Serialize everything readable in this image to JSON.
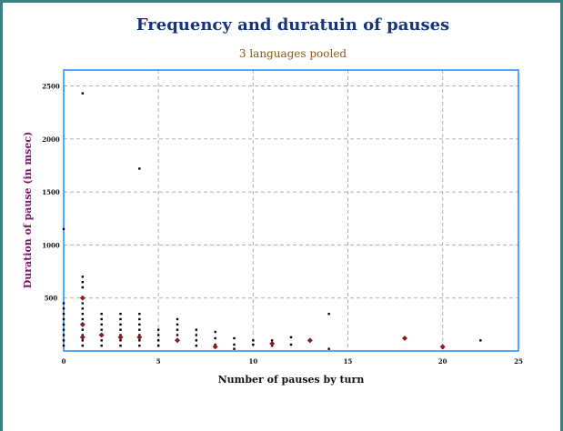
{
  "chart_data": {
    "type": "scatter",
    "title": "Frequency and duratuin of pauses",
    "subtitle": "3 languages pooled",
    "xlabel": "Number of pauses by turn",
    "ylabel": "Duration of pause (in msec)",
    "x_ticks": [
      "0",
      "5",
      "10",
      "15",
      "20",
      "25"
    ],
    "y_ticks": [
      "500",
      "1000",
      "1500",
      "2000",
      "2500"
    ],
    "xlim": [
      0,
      24
    ],
    "ylim": [
      0,
      2650
    ],
    "grid": true,
    "colors": {
      "frame": "#1e8cff",
      "grid": "#b0b0b0",
      "points": "#000000",
      "means": "#8b1a1a",
      "border": "#3f7f7f"
    },
    "series": [
      {
        "points": [
          [
            0,
            1150
          ],
          [
            0,
            450
          ],
          [
            0,
            400
          ],
          [
            0,
            350
          ],
          [
            0,
            300
          ],
          [
            0,
            250
          ],
          [
            0,
            200
          ],
          [
            0,
            150
          ],
          [
            0,
            100
          ],
          [
            0,
            50
          ],
          [
            1,
            2430
          ],
          [
            1,
            700
          ],
          [
            1,
            650
          ],
          [
            1,
            600
          ],
          [
            1,
            500
          ],
          [
            1,
            450
          ],
          [
            1,
            400
          ],
          [
            1,
            350
          ],
          [
            1,
            300
          ],
          [
            1,
            250
          ],
          [
            1,
            200
          ],
          [
            1,
            150
          ],
          [
            1,
            100
          ],
          [
            1,
            50
          ],
          [
            2,
            350
          ],
          [
            2,
            300
          ],
          [
            2,
            250
          ],
          [
            2,
            200
          ],
          [
            2,
            150
          ],
          [
            2,
            100
          ],
          [
            2,
            50
          ],
          [
            3,
            350
          ],
          [
            3,
            300
          ],
          [
            3,
            250
          ],
          [
            3,
            200
          ],
          [
            3,
            150
          ],
          [
            3,
            100
          ],
          [
            3,
            50
          ],
          [
            4,
            1720
          ],
          [
            4,
            350
          ],
          [
            4,
            300
          ],
          [
            4,
            250
          ],
          [
            4,
            200
          ],
          [
            4,
            150
          ],
          [
            4,
            100
          ],
          [
            4,
            50
          ],
          [
            5,
            200
          ],
          [
            5,
            150
          ],
          [
            5,
            100
          ],
          [
            5,
            50
          ],
          [
            6,
            300
          ],
          [
            6,
            250
          ],
          [
            6,
            200
          ],
          [
            6,
            150
          ],
          [
            6,
            100
          ],
          [
            7,
            200
          ],
          [
            7,
            150
          ],
          [
            7,
            100
          ],
          [
            7,
            50
          ],
          [
            8,
            180
          ],
          [
            8,
            120
          ],
          [
            8,
            60
          ],
          [
            9,
            120
          ],
          [
            9,
            60
          ],
          [
            9,
            20
          ],
          [
            10,
            100
          ],
          [
            10,
            60
          ],
          [
            11,
            100
          ],
          [
            11,
            50
          ],
          [
            12,
            130
          ],
          [
            12,
            60
          ],
          [
            13,
            100
          ],
          [
            14,
            350
          ],
          [
            14,
            20
          ],
          [
            20,
            30
          ],
          [
            22,
            100
          ]
        ]
      },
      {
        "points": [
          [
            1,
            500
          ],
          [
            1,
            250
          ],
          [
            1,
            130
          ],
          [
            2,
            150
          ],
          [
            3,
            130
          ],
          [
            4,
            130
          ],
          [
            6,
            100
          ],
          [
            8,
            40
          ],
          [
            11,
            70
          ],
          [
            13,
            100
          ],
          [
            18,
            120
          ],
          [
            20,
            40
          ]
        ]
      }
    ]
  }
}
